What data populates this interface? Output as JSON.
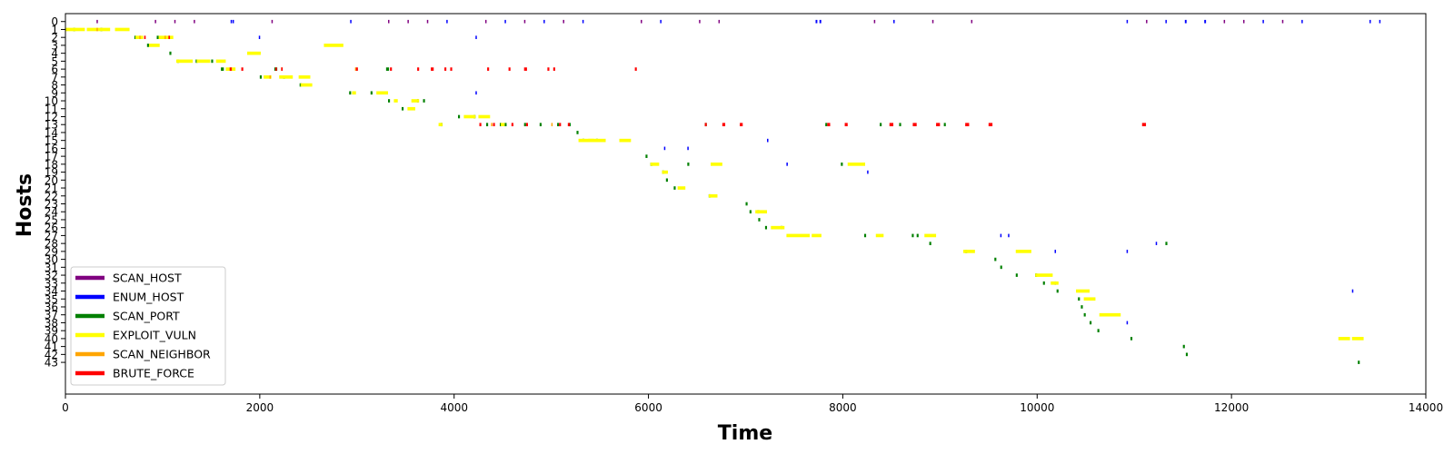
{
  "chart_data": {
    "type": "scatter",
    "xlabel": "Time",
    "ylabel": "Hosts",
    "xlim": [
      0,
      14000
    ],
    "ylim": [
      -1,
      47
    ],
    "x_ticks": [
      "0",
      "2000",
      "4000",
      "6000",
      "8000",
      "10000",
      "12000",
      "14000"
    ],
    "y_ticks": [
      "0",
      "1",
      "2",
      "3",
      "4",
      "5",
      "6",
      "7",
      "8",
      "9",
      "10",
      "11",
      "12",
      "13",
      "14",
      "15",
      "16",
      "17",
      "18",
      "19",
      "20",
      "21",
      "22",
      "23",
      "24",
      "25",
      "26",
      "27",
      "28",
      "29",
      "30",
      "31",
      "32",
      "33",
      "34",
      "35",
      "36",
      "37",
      "38",
      "39",
      "40",
      "41",
      "42",
      "43"
    ],
    "grid": false,
    "legend_position": "lower-left",
    "series": [
      {
        "name": "SCAN_HOST",
        "color": "#800080",
        "hosts": [
          0,
          0,
          0,
          0,
          0,
          0,
          0,
          0,
          0,
          0,
          0,
          0,
          0,
          0,
          0,
          0,
          0,
          0,
          0,
          0,
          0
        ],
        "starts": [
          320,
          920,
          1120,
          1320,
          2120,
          3320,
          3520,
          3720,
          4320,
          4720,
          5120,
          5920,
          6520,
          6720,
          8320,
          8920,
          9320,
          11120,
          11920,
          12120,
          12520
        ],
        "durations": [
          12,
          12,
          12,
          12,
          12,
          12,
          12,
          12,
          12,
          12,
          12,
          12,
          12,
          12,
          12,
          12,
          12,
          12,
          12,
          12,
          12
        ]
      },
      {
        "name": "ENUM_HOST",
        "color": "#0000ff",
        "hosts": [
          0,
          0,
          0,
          0,
          0,
          0,
          0,
          0,
          0,
          0,
          0,
          0,
          0,
          0,
          0,
          0,
          0,
          0,
          0,
          2,
          2,
          9,
          10,
          15,
          16,
          16,
          18,
          19,
          27,
          27,
          28,
          29,
          29,
          33,
          34,
          38
        ],
        "starts": [
          1720,
          2930,
          3920,
          4520,
          4920,
          5320,
          6120,
          7720,
          8520,
          10920,
          11320,
          11720,
          12320,
          12720,
          13420,
          13520,
          7760,
          11520,
          1700,
          1990,
          4220,
          4220,
          3620,
          7220,
          6160,
          6400,
          7420,
          8250,
          9620,
          9700,
          11220,
          10180,
          10920,
          10180,
          13240,
          10920
        ],
        "durations": [
          12,
          12,
          12,
          12,
          12,
          12,
          12,
          18,
          12,
          12,
          12,
          18,
          12,
          12,
          12,
          12,
          18,
          18,
          12,
          12,
          12,
          12,
          12,
          12,
          12,
          12,
          12,
          12,
          12,
          12,
          12,
          12,
          12,
          12,
          12,
          12
        ]
      },
      {
        "name": "SCAN_PORT",
        "color": "#008000",
        "hosts": [
          1,
          1,
          2,
          2,
          3,
          4,
          5,
          5,
          5,
          6,
          6,
          6,
          7,
          7,
          8,
          9,
          9,
          10,
          10,
          11,
          12,
          12,
          13,
          13,
          13,
          13,
          13,
          13,
          13,
          13,
          13,
          13,
          13,
          13,
          13,
          14,
          15,
          15,
          17,
          18,
          18,
          18,
          19,
          20,
          21,
          22,
          23,
          24,
          24,
          25,
          26,
          26,
          27,
          27,
          27,
          28,
          28,
          29,
          30,
          31,
          32,
          32,
          33,
          34,
          35,
          36,
          37,
          38,
          39,
          40,
          41,
          42,
          43
        ],
        "starts": [
          80,
          360,
          710,
          940,
          840,
          1070,
          1150,
          1340,
          1500,
          1600,
          2150,
          3300,
          2000,
          2240,
          2410,
          2920,
          3140,
          3320,
          3680,
          3460,
          4040,
          4200,
          3860,
          4330,
          4470,
          4520,
          4720,
          4880,
          5060,
          5180,
          6580,
          7820,
          8380,
          8580,
          9040,
          5260,
          5320,
          5460,
          5970,
          6020,
          6400,
          7980,
          6140,
          6180,
          6260,
          6620,
          7000,
          7040,
          7120,
          7130,
          7200,
          7360,
          8220,
          8710,
          8760,
          8890,
          11320,
          9260,
          9560,
          9620,
          9780,
          9980,
          10060,
          10200,
          10420,
          10450,
          10480,
          10540,
          10620,
          10960,
          11500,
          11530,
          13300
        ],
        "durations": [
          20,
          20,
          20,
          20,
          20,
          20,
          20,
          20,
          20,
          30,
          30,
          30,
          20,
          20,
          20,
          20,
          20,
          20,
          20,
          20,
          20,
          20,
          20,
          20,
          20,
          20,
          20,
          20,
          20,
          20,
          20,
          20,
          20,
          20,
          20,
          20,
          20,
          20,
          20,
          20,
          20,
          20,
          20,
          20,
          20,
          20,
          20,
          20,
          20,
          20,
          20,
          20,
          20,
          20,
          20,
          20,
          20,
          20,
          20,
          20,
          20,
          20,
          20,
          20,
          20,
          20,
          20,
          20,
          20,
          20,
          20,
          20,
          20
        ]
      },
      {
        "name": "EXPLOIT_VULN",
        "color": "#ffff00",
        "hosts": [
          1,
          1,
          1,
          2,
          2,
          3,
          3,
          4,
          5,
          5,
          5,
          6,
          7,
          7,
          7,
          8,
          9,
          9,
          10,
          10,
          11,
          12,
          12,
          13,
          13,
          15,
          15,
          15,
          18,
          18,
          18,
          19,
          21,
          22,
          24,
          26,
          27,
          27,
          27,
          27,
          29,
          29,
          32,
          33,
          34,
          35,
          37,
          40,
          40
        ],
        "starts": [
          0,
          220,
          510,
          720,
          960,
          860,
          2660,
          1870,
          1140,
          1350,
          1550,
          1650,
          2040,
          2200,
          2400,
          2420,
          2950,
          3200,
          3380,
          3560,
          3520,
          4100,
          4250,
          3840,
          4480,
          5280,
          5380,
          5700,
          6020,
          6640,
          8050,
          6140,
          6300,
          6620,
          7100,
          7260,
          7420,
          7680,
          8340,
          8840,
          9240,
          9780,
          9980,
          10140,
          10400,
          10480,
          10640,
          13100,
          13240
        ],
        "durations": [
          200,
          240,
          150,
          80,
          150,
          110,
          200,
          140,
          170,
          140,
          100,
          100,
          80,
          140,
          120,
          120,
          40,
          120,
          40,
          80,
          80,
          120,
          120,
          40,
          40,
          160,
          180,
          120,
          90,
          120,
          180,
          60,
          80,
          90,
          120,
          140,
          240,
          100,
          80,
          120,
          120,
          160,
          180,
          80,
          140,
          120,
          220,
          120,
          120
        ]
      },
      {
        "name": "SCAN_NEIGHBOR",
        "color": "#ffa500",
        "hosts": [
          1,
          2,
          2,
          6,
          6,
          6,
          7,
          13,
          13
        ],
        "starts": [
          320,
          760,
          1020,
          1700,
          2220,
          2980,
          2100,
          4380,
          5000
        ],
        "durations": [
          14,
          14,
          14,
          14,
          14,
          14,
          14,
          14,
          14
        ]
      },
      {
        "name": "BRUTE_FORCE",
        "color": "#ff0000",
        "hosts": [
          2,
          2,
          6,
          6,
          6,
          6,
          6,
          6,
          6,
          6,
          6,
          6,
          6,
          6,
          6,
          6,
          6,
          6,
          13,
          13,
          13,
          13,
          13,
          13,
          13,
          13,
          13,
          13,
          13,
          13,
          13,
          13,
          13,
          13,
          13
        ],
        "starts": [
          810,
          1060,
          1690,
          1810,
          2160,
          2220,
          2990,
          3340,
          3620,
          3760,
          3900,
          3960,
          4340,
          4560,
          4720,
          4960,
          5020,
          5860,
          4260,
          4400,
          4590,
          4740,
          5080,
          5170,
          6580,
          6760,
          6940,
          7840,
          8020,
          8480,
          8720,
          8960,
          9260,
          9500,
          11080
        ],
        "durations": [
          16,
          16,
          20,
          20,
          16,
          16,
          20,
          20,
          20,
          30,
          20,
          20,
          20,
          20,
          30,
          20,
          20,
          20,
          20,
          20,
          20,
          20,
          20,
          20,
          20,
          30,
          30,
          30,
          30,
          40,
          40,
          40,
          40,
          40,
          40
        ]
      }
    ]
  }
}
